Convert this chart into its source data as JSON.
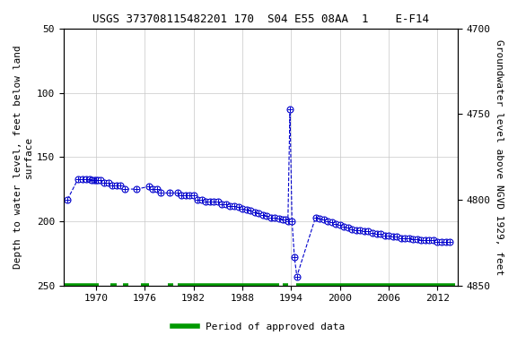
{
  "title": "USGS 373708115482201 170  S04 E55 08AA  1    E-F14",
  "ylabel_left": "Depth to water level, feet below land\nsurface",
  "ylabel_right": "Groundwater level above NGVD 1929, feet",
  "ylim_left": [
    50,
    250
  ],
  "ylim_right": [
    4850,
    4700
  ],
  "xlim": [
    1966.0,
    2014.5
  ],
  "xticks": [
    1970,
    1976,
    1982,
    1988,
    1994,
    2000,
    2006,
    2012
  ],
  "yticks_left": [
    50,
    100,
    150,
    200,
    250
  ],
  "yticks_right": [
    4850,
    4800,
    4750,
    4700
  ],
  "data_x": [
    1966.5,
    1967.8,
    1968.3,
    1968.8,
    1969.2,
    1969.5,
    1969.8,
    1970.0,
    1970.2,
    1970.5,
    1971.0,
    1971.5,
    1972.0,
    1972.5,
    1973.0,
    1973.5,
    1975.0,
    1976.5,
    1977.0,
    1977.5,
    1978.0,
    1979.0,
    1980.0,
    1980.5,
    1981.0,
    1981.5,
    1982.0,
    1982.5,
    1983.0,
    1983.5,
    1984.0,
    1984.5,
    1985.0,
    1985.5,
    1986.0,
    1986.5,
    1987.0,
    1987.5,
    1988.0,
    1988.5,
    1989.0,
    1989.5,
    1990.0,
    1990.5,
    1991.0,
    1991.5,
    1992.0,
    1992.5,
    1993.0,
    1993.3,
    1993.6,
    1993.85,
    1994.1,
    1994.4,
    1994.7,
    1997.0,
    1997.5,
    1998.0,
    1998.5,
    1999.0,
    1999.5,
    2000.0,
    2000.5,
    2001.0,
    2001.5,
    2002.0,
    2002.5,
    2003.0,
    2003.5,
    2004.0,
    2004.5,
    2005.0,
    2005.5,
    2006.0,
    2006.5,
    2007.0,
    2007.5,
    2008.0,
    2008.5,
    2009.0,
    2009.5,
    2010.0,
    2010.5,
    2011.0,
    2011.5,
    2012.0,
    2012.5,
    2013.0,
    2013.5
  ],
  "data_y": [
    183,
    167,
    167,
    167,
    167,
    168,
    168,
    168,
    168,
    168,
    170,
    170,
    172,
    172,
    172,
    175,
    175,
    173,
    175,
    175,
    178,
    178,
    178,
    180,
    180,
    180,
    180,
    183,
    183,
    185,
    185,
    185,
    185,
    187,
    187,
    188,
    188,
    189,
    190,
    191,
    192,
    193,
    194,
    195,
    196,
    197,
    197,
    198,
    199,
    199,
    200,
    113,
    200,
    228,
    243,
    197,
    198,
    199,
    200,
    201,
    202,
    203,
    204,
    205,
    206,
    207,
    207,
    208,
    208,
    209,
    210,
    210,
    211,
    211,
    212,
    212,
    213,
    213,
    213,
    214,
    214,
    215,
    215,
    215,
    215,
    216,
    216,
    216,
    216
  ],
  "approved_periods": [
    [
      1966.0,
      1970.3
    ],
    [
      1971.8,
      1972.5
    ],
    [
      1973.3,
      1974.0
    ],
    [
      1975.5,
      1976.5
    ],
    [
      1978.8,
      1979.5
    ],
    [
      1980.0,
      1992.5
    ],
    [
      1993.0,
      1993.6
    ],
    [
      1994.6,
      2014.2
    ]
  ],
  "line_color": "#0000CC",
  "dot_color": "#0000CC",
  "approved_color": "#009900",
  "background_color": "#ffffff",
  "grid_color": "#c8c8c8",
  "title_fontsize": 9,
  "axis_fontsize": 8,
  "tick_fontsize": 8
}
